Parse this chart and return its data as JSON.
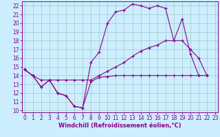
{
  "background_color": "#cceeff",
  "grid_color": "#aacccc",
  "line_color": "#880088",
  "xlim": [
    -0.3,
    23.3
  ],
  "ylim": [
    9.8,
    22.5
  ],
  "xticks": [
    0,
    1,
    2,
    3,
    4,
    5,
    6,
    7,
    8,
    9,
    10,
    11,
    12,
    13,
    14,
    15,
    16,
    17,
    18,
    19,
    20,
    21,
    22,
    23
  ],
  "yticks": [
    10,
    11,
    12,
    13,
    14,
    15,
    16,
    17,
    18,
    19,
    20,
    21,
    22
  ],
  "xlabel": "Windchill (Refroidissement éolien,°C)",
  "line1_x": [
    0,
    1,
    2,
    3,
    4,
    5,
    6,
    7,
    8,
    9,
    10,
    11,
    12,
    13,
    14,
    15,
    16,
    17,
    18,
    19,
    20,
    21,
    22
  ],
  "line1_y": [
    14.7,
    14.0,
    12.7,
    13.5,
    12.0,
    11.7,
    10.5,
    10.3,
    15.5,
    16.7,
    20.0,
    21.3,
    21.5,
    22.2,
    22.0,
    21.7,
    22.0,
    21.7,
    18.0,
    20.5,
    16.5,
    14.0,
    14.0
  ],
  "line2_x": [
    0,
    1,
    2,
    3,
    4,
    5,
    6,
    7,
    8,
    9,
    10,
    11,
    12,
    13,
    14,
    15,
    16,
    17,
    18,
    19,
    20,
    21,
    22
  ],
  "line2_y": [
    14.7,
    14.0,
    12.7,
    13.5,
    12.0,
    11.7,
    10.5,
    10.3,
    13.3,
    13.8,
    13.9,
    14.0,
    14.0,
    14.0,
    14.0,
    14.0,
    14.0,
    14.0,
    14.0,
    14.0,
    14.0,
    14.0,
    14.0
  ],
  "line3_x": [
    0,
    1,
    2,
    3,
    4,
    5,
    6,
    7,
    8,
    9,
    10,
    11,
    12,
    13,
    14,
    15,
    16,
    17,
    18,
    19,
    20,
    21,
    22
  ],
  "line3_y": [
    14.7,
    14.0,
    13.5,
    13.5,
    13.5,
    13.5,
    13.5,
    13.5,
    13.5,
    14.0,
    14.5,
    15.0,
    15.5,
    16.2,
    16.8,
    17.2,
    17.5,
    18.0,
    18.0,
    18.0,
    17.0,
    16.0,
    14.0
  ],
  "tick_fontsize": 5.5,
  "xlabel_fontsize": 6.0
}
